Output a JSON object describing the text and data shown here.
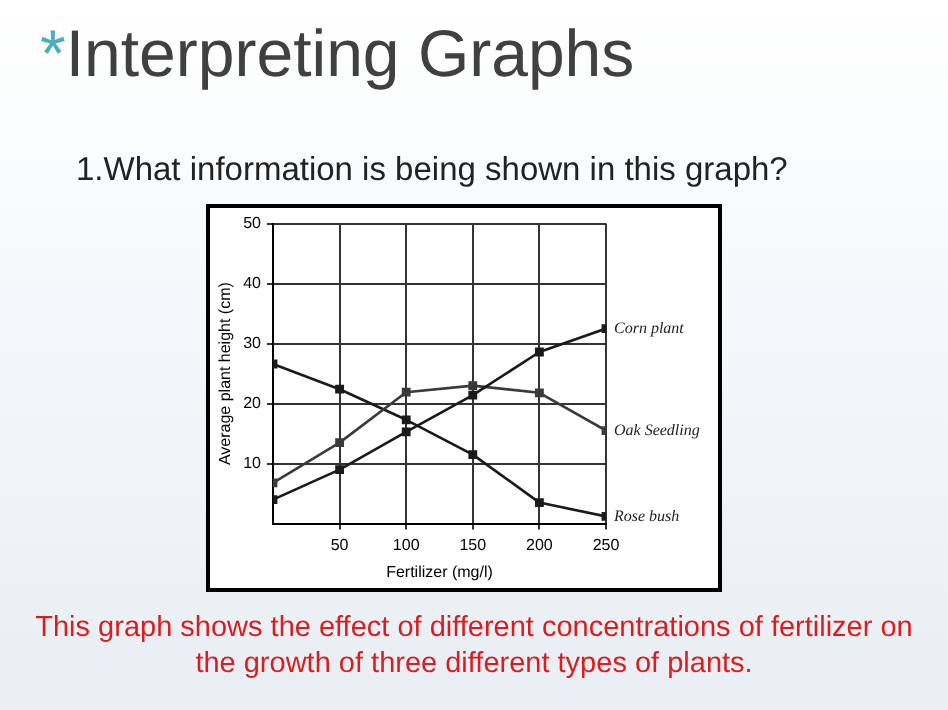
{
  "chart_data": {
    "type": "line",
    "title": "*Interpreting Graphs",
    "subtitle": "1.What information is being shown in this graph?",
    "xlabel": "Fertilizer (mg/l)",
    "ylabel": "Average plant height (cm)",
    "x": [
      0,
      50,
      100,
      150,
      200,
      250
    ],
    "series": [
      {
        "name": "Corn plant",
        "color": "#1a1a1a",
        "values": [
          4,
          9,
          15.3,
          21.4,
          28.6,
          32.5
        ]
      },
      {
        "name": "Oak Seedling",
        "color": "#3a3a3a",
        "values": [
          6.8,
          13.5,
          21.9,
          23,
          21.8,
          15.5
        ]
      },
      {
        "name": "Rose bush",
        "color": "#1a1a1a",
        "values": [
          26.6,
          22.4,
          17.3,
          11.5,
          3.5,
          1.2
        ]
      }
    ],
    "xlim": [
      0,
      250
    ],
    "xticks": [
      50,
      100,
      150,
      200,
      250
    ],
    "ylim": [
      0,
      50
    ],
    "yticks": [
      10,
      20,
      30,
      40,
      50
    ],
    "grid": true,
    "legend": false,
    "marker": "square",
    "line_style": "solid",
    "annotations": [
      "This graph shows the effect of different concentrations of fertilizer on the growth of three different types of plants."
    ]
  }
}
